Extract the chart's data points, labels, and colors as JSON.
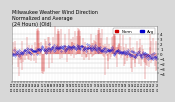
{
  "title": "Milwaukee Weather Wind Direction\nNormalized and Average\n(24 Hours) (Old)",
  "bg_color": "#d8d8d8",
  "plot_bg_color": "#ffffff",
  "red_color": "#cc0000",
  "blue_color": "#0000cc",
  "grid_color": "#aaaaaa",
  "ylim": [
    -5.5,
    5.5
  ],
  "yticks": [
    -4,
    -3,
    -2,
    -1,
    0,
    1,
    2,
    3,
    4
  ],
  "n_points": 288,
  "title_fontsize": 3.5,
  "tick_fontsize": 2.8,
  "legend_fontsize": 2.8
}
